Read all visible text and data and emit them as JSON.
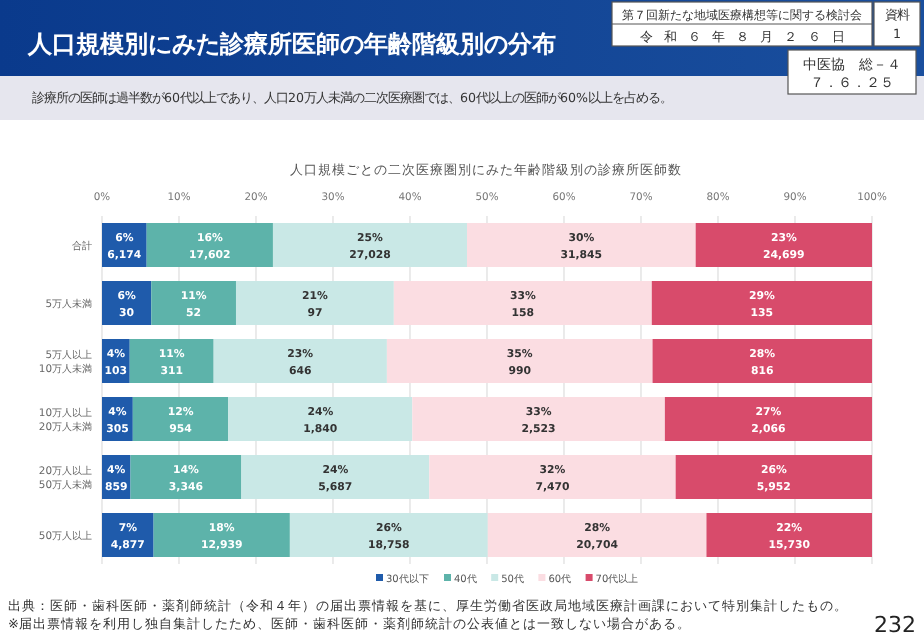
{
  "chart_data": {
    "type": "bar",
    "orientation": "horizontal",
    "stacked": true,
    "title": "人口規模別にみた診療所医師の年齢階級別の分布",
    "subtitle": "診療所の医師は過半数が60代以上であり、人口20万人未満の二次医療圏では、60代以上の医師が60%以上を占める。",
    "annotations": [
      "人口規模ごとの二次医療圏別にみた年齢階級別の診療所医師数",
      "第７回新たな地域医療構想等に関する検討会",
      "資料",
      "1",
      "令　和　６　年　８　月　２　６　日",
      "中医協　総－４",
      "７．６．２５",
      "出典：医師・歯科医師・薬剤師統計（令和４年）の届出票情報を基に、厚生労働省医政局地域医療計画課において特別集計したもの。",
      "※届出票情報を利用し独自集計したため、医師・歯科医師・薬剤師統計の公表値とは一致しない場合がある。",
      "232"
    ],
    "categories": [
      "合計",
      "5万人未満",
      "5万人以上\n10万人未満",
      "10万人以上\n20万人未満",
      "20万人以上\n50万人未満",
      "50万人以上"
    ],
    "xlim": [
      0,
      100
    ],
    "xticks": [
      {
        "value": 0,
        "label": "0%"
      },
      {
        "value": 10,
        "label": "10%"
      },
      {
        "value": 20,
        "label": "20%"
      },
      {
        "value": 30,
        "label": "30%"
      },
      {
        "value": 40,
        "label": "40%"
      },
      {
        "value": 50,
        "label": "50%"
      },
      {
        "value": 60,
        "label": "60%"
      },
      {
        "value": 70,
        "label": "70%"
      },
      {
        "value": 80,
        "label": "80%"
      },
      {
        "value": 90,
        "label": "90%"
      },
      {
        "value": 100,
        "label": "100%"
      }
    ],
    "grid": "x",
    "legend": "bottom",
    "series": [
      {
        "name": "30代以下",
        "color": "#1f5bab",
        "values": [
          5.8,
          6.4,
          3.6,
          4.0,
          3.7,
          6.7
        ],
        "value_labels": [
          "6%\n6,174",
          "6%\n30",
          "4%\n103",
          "4%\n305",
          "4%\n859",
          "7%\n4,877"
        ]
      },
      {
        "name": "40代",
        "color": "#5db3aa",
        "values": [
          16.4,
          11.0,
          10.9,
          12.4,
          14.4,
          17.7
        ],
        "value_labels": [
          "16%\n17,602",
          "11%\n52",
          "11%\n311",
          "12%\n954",
          "14%\n3,346",
          "18%\n12,939"
        ]
      },
      {
        "name": "50代",
        "color": "#c9e8e6",
        "values": [
          25.2,
          20.5,
          22.5,
          23.9,
          24.4,
          25.7
        ],
        "value_labels": [
          "25%\n27,028",
          "21%\n97",
          "23%\n646",
          "24%\n1,840",
          "24%\n5,687",
          "26%\n18,758"
        ]
      },
      {
        "name": "60代",
        "color": "#fbdde2",
        "values": [
          29.7,
          33.5,
          34.5,
          32.8,
          32.0,
          28.4
        ],
        "value_labels": [
          "30%\n31,845",
          "33%\n158",
          "35%\n990",
          "33%\n2,523",
          "32%\n7,470",
          "28%\n20,704"
        ]
      },
      {
        "name": "70代以上",
        "color": "#d84b6b",
        "values": [
          22.9,
          28.6,
          28.5,
          26.9,
          25.5,
          21.5
        ],
        "value_labels": [
          "23%\n24,699",
          "29%\n135",
          "28%\n816",
          "27%\n2,066",
          "26%\n5,952",
          "22%\n15,730"
        ]
      }
    ]
  }
}
